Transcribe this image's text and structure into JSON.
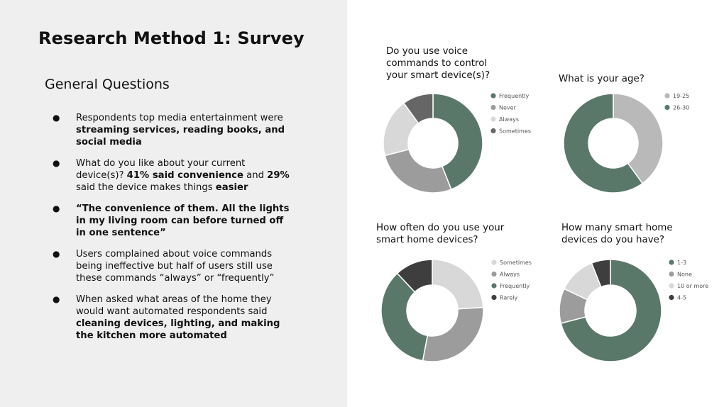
{
  "slide": {
    "title": "Research Method 1: Survey",
    "subtitle": "General Questions"
  },
  "bullets": [
    {
      "marker": "●",
      "parts": [
        {
          "text": "Respondents top media entertainment were ",
          "bold": false
        },
        {
          "text": "streaming services, reading books, and social media",
          "bold": true
        }
      ]
    },
    {
      "marker": "●",
      "parts": [
        {
          "text": "What do you like about your current device(s)? ",
          "bold": false
        },
        {
          "text": "41% said convenience",
          "bold": true
        },
        {
          "text": " and ",
          "bold": false
        },
        {
          "text": "29%",
          "bold": true
        },
        {
          "text": " said the device makes things ",
          "bold": false
        },
        {
          "text": "easier",
          "bold": true
        }
      ]
    },
    {
      "marker": "●",
      "parts": [
        {
          "text": "“The convenience of them. All the lights in my living room can before turned off in one sentence”",
          "bold": true
        }
      ]
    },
    {
      "marker": "●",
      "parts": [
        {
          "text": "Users complained about voice commands being ineffective but half of users still use these commands “always” or “frequently”",
          "bold": false
        }
      ]
    },
    {
      "marker": "●",
      "parts": [
        {
          "text": "When asked what areas of the home they would want automated respondents said ",
          "bold": false
        },
        {
          "text": "cleaning devices, lighting, and making the kitchen more automated",
          "bold": true
        }
      ]
    }
  ],
  "chart_data": [
    {
      "type": "pie",
      "title": "Do you use voice commands to control your smart device(s)?",
      "legend_position": "right",
      "series": [
        {
          "name": "Frequently",
          "value": 44,
          "color": "#5a7869"
        },
        {
          "name": "Never",
          "value": 27,
          "color": "#9c9c9c"
        },
        {
          "name": "Always",
          "value": 19,
          "color": "#d8d8d8"
        },
        {
          "name": "Sometimes",
          "value": 10,
          "color": "#666666"
        }
      ]
    },
    {
      "type": "pie",
      "title": "What is your age?",
      "legend_position": "right",
      "series": [
        {
          "name": "19-25",
          "value": 40,
          "color": "#b9b9b9"
        },
        {
          "name": "26-30",
          "value": 60,
          "color": "#5a7869"
        }
      ]
    },
    {
      "type": "pie",
      "title": "How often do you use your smart home devices?",
      "legend_position": "right",
      "series": [
        {
          "name": "Sometimes",
          "value": 24,
          "color": "#d8d8d8"
        },
        {
          "name": "Always",
          "value": 29,
          "color": "#9c9c9c"
        },
        {
          "name": "Frequently",
          "value": 35,
          "color": "#5a7869"
        },
        {
          "name": "Rarely",
          "value": 12,
          "color": "#3e3e3e"
        }
      ]
    },
    {
      "type": "pie",
      "title": "How many smart home devices do you have?",
      "legend_position": "right",
      "series": [
        {
          "name": "1-3",
          "value": 71,
          "color": "#5a7869"
        },
        {
          "name": "None",
          "value": 11,
          "color": "#9c9c9c"
        },
        {
          "name": "10 or more",
          "value": 12,
          "color": "#d8d8d8"
        },
        {
          "name": "4-5",
          "value": 6,
          "color": "#3e3e3e"
        }
      ]
    }
  ]
}
